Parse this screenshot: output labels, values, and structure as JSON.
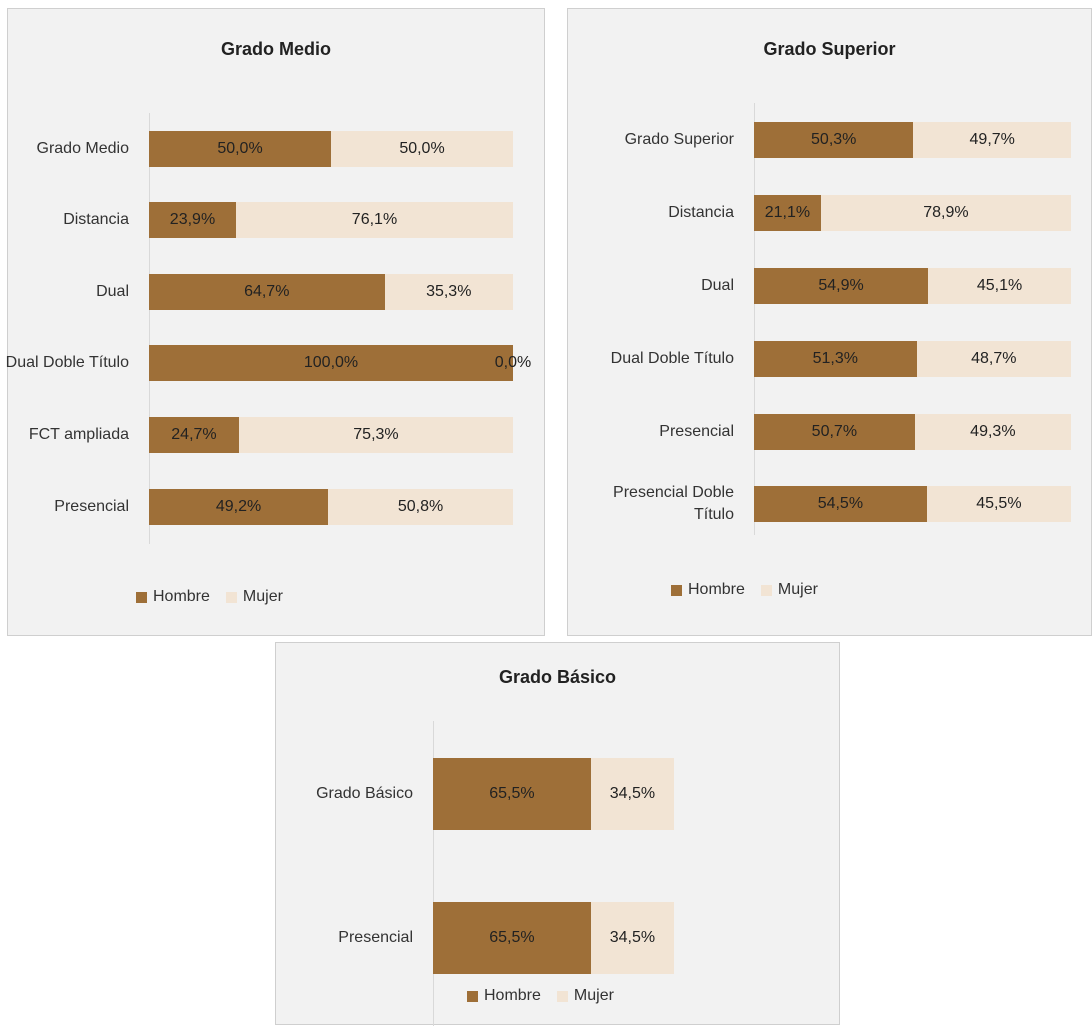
{
  "chart_data": [
    {
      "type": "bar",
      "orientation": "horizontal",
      "stacked": true,
      "title": "Grado Medio",
      "categories": [
        "Grado Medio",
        "Distancia",
        "Dual",
        "Dual Doble Título",
        "FCT ampliada",
        "Presencial"
      ],
      "xlim": [
        0,
        100
      ],
      "legend": "bottom",
      "series": [
        {
          "name": "Hombre",
          "color": "#9e6f38",
          "values": [
            50.0,
            23.9,
            64.7,
            100.0,
            24.7,
            49.2
          ],
          "value_labels": [
            "50,0%",
            "23,9%",
            "64,7%",
            "100,0%",
            "24,7%",
            "49,2%"
          ]
        },
        {
          "name": "Mujer",
          "color": "#f2e4d4",
          "values": [
            50.0,
            76.1,
            35.3,
            0.0,
            75.3,
            50.8
          ],
          "value_labels": [
            "50,0%",
            "76,1%",
            "35,3%",
            "0,0%",
            "75,3%",
            "50,8%"
          ]
        }
      ]
    },
    {
      "type": "bar",
      "orientation": "horizontal",
      "stacked": true,
      "title": "Grado Superior",
      "categories": [
        "Grado Superior",
        "Distancia",
        "Dual",
        "Dual Doble Título",
        "Presencial",
        "Presencial Doble Título"
      ],
      "xlim": [
        0,
        100
      ],
      "legend": "bottom",
      "series": [
        {
          "name": "Hombre",
          "color": "#9e6f38",
          "values": [
            50.3,
            21.1,
            54.9,
            51.3,
            50.7,
            54.5
          ],
          "value_labels": [
            "50,3%",
            "21,1%",
            "54,9%",
            "51,3%",
            "50,7%",
            "54,5%"
          ]
        },
        {
          "name": "Mujer",
          "color": "#f2e4d4",
          "values": [
            49.7,
            78.9,
            45.1,
            48.7,
            49.3,
            45.5
          ],
          "value_labels": [
            "49,7%",
            "78,9%",
            "45,1%",
            "48,7%",
            "49,3%",
            "45,5%"
          ]
        }
      ]
    },
    {
      "type": "bar",
      "orientation": "horizontal",
      "stacked": true,
      "title": "Grado Básico",
      "categories": [
        "Grado Básico",
        "Presencial"
      ],
      "xlim": [
        0,
        100
      ],
      "legend": "bottom",
      "series": [
        {
          "name": "Hombre",
          "color": "#9e6f38",
          "values": [
            65.5,
            65.5
          ],
          "value_labels": [
            "65,5%",
            "65,5%"
          ]
        },
        {
          "name": "Mujer",
          "color": "#f2e4d4",
          "values": [
            34.5,
            34.5
          ],
          "value_labels": [
            "34,5%",
            "34,5%"
          ]
        }
      ]
    }
  ]
}
